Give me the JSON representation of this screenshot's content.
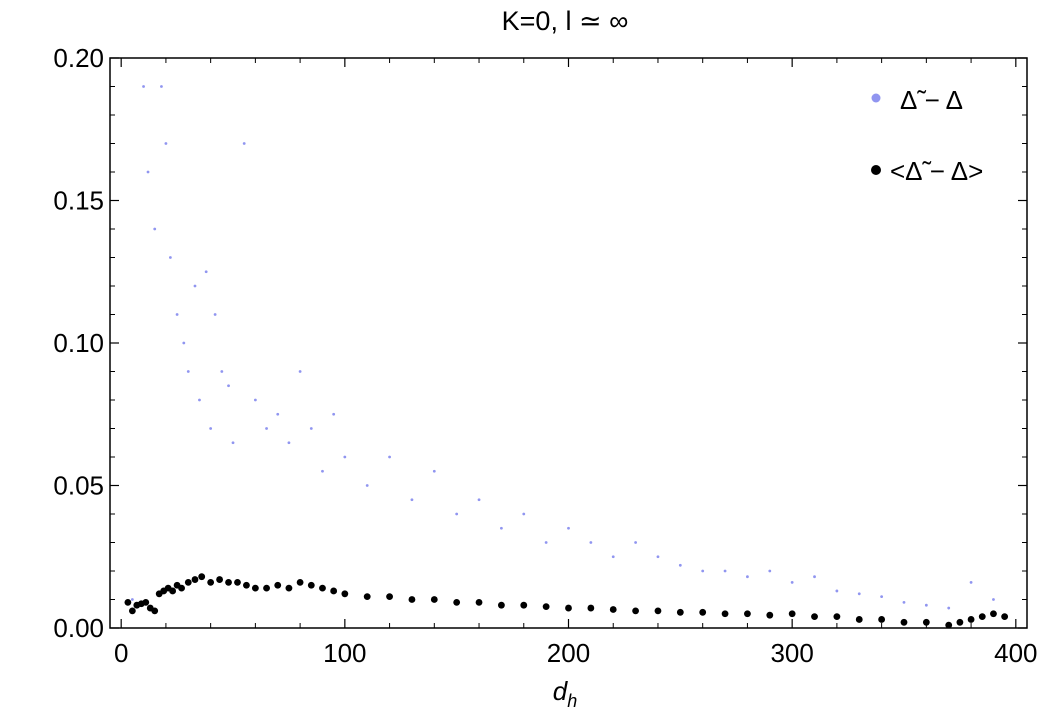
{
  "chart_data": {
    "type": "scatter",
    "title": "K=0,  l ≃ ∞",
    "xlabel": "d",
    "xlabel_sub": "h",
    "ylabel": "",
    "xlim": [
      -5,
      405
    ],
    "ylim": [
      0,
      0.2
    ],
    "x_ticks": [
      0,
      100,
      200,
      300,
      400
    ],
    "x_tick_labels": [
      "0",
      "100",
      "200",
      "300",
      "400"
    ],
    "y_ticks": [
      0,
      0.05,
      0.1,
      0.15,
      0.2
    ],
    "y_tick_labels": [
      "0.00",
      "0.05",
      "0.10",
      "0.15",
      "0.20"
    ],
    "grid": false,
    "legend_position": "top-right",
    "series": [
      {
        "name": "Δ̃ − Δ",
        "color": "#9095f0",
        "marker": "small-dot",
        "x": [
          5,
          10,
          12,
          15,
          18,
          20,
          22,
          25,
          28,
          30,
          33,
          35,
          38,
          40,
          42,
          45,
          48,
          50,
          55,
          60,
          65,
          70,
          75,
          80,
          85,
          90,
          95,
          100,
          110,
          120,
          130,
          140,
          150,
          160,
          170,
          180,
          190,
          200,
          210,
          220,
          230,
          240,
          250,
          260,
          270,
          280,
          290,
          300,
          310,
          320,
          330,
          340,
          350,
          360,
          370,
          380,
          390
        ],
        "y": [
          0.01,
          0.19,
          0.16,
          0.14,
          0.19,
          0.17,
          0.13,
          0.11,
          0.1,
          0.09,
          0.12,
          0.08,
          0.125,
          0.07,
          0.11,
          0.09,
          0.085,
          0.065,
          0.17,
          0.08,
          0.07,
          0.075,
          0.065,
          0.09,
          0.07,
          0.055,
          0.075,
          0.06,
          0.05,
          0.06,
          0.045,
          0.055,
          0.04,
          0.045,
          0.035,
          0.04,
          0.03,
          0.035,
          0.03,
          0.025,
          0.03,
          0.025,
          0.022,
          0.02,
          0.02,
          0.018,
          0.02,
          0.016,
          0.018,
          0.013,
          0.012,
          0.011,
          0.009,
          0.008,
          0.007,
          0.016,
          0.01
        ]
      },
      {
        "name": "<Δ̃ − Δ>",
        "color": "#000000",
        "marker": "dot",
        "x": [
          3,
          5,
          7,
          9,
          11,
          13,
          15,
          17,
          19,
          21,
          23,
          25,
          27,
          30,
          33,
          36,
          40,
          44,
          48,
          52,
          56,
          60,
          65,
          70,
          75,
          80,
          85,
          90,
          95,
          100,
          110,
          120,
          130,
          140,
          150,
          160,
          170,
          180,
          190,
          200,
          210,
          220,
          230,
          240,
          250,
          260,
          270,
          280,
          290,
          300,
          310,
          320,
          330,
          340,
          350,
          360,
          370,
          375,
          380,
          385,
          390,
          395
        ],
        "y": [
          0.009,
          0.006,
          0.008,
          0.0085,
          0.009,
          0.007,
          0.006,
          0.012,
          0.013,
          0.014,
          0.013,
          0.015,
          0.014,
          0.016,
          0.017,
          0.018,
          0.016,
          0.017,
          0.016,
          0.016,
          0.015,
          0.014,
          0.014,
          0.015,
          0.014,
          0.016,
          0.015,
          0.014,
          0.013,
          0.012,
          0.011,
          0.011,
          0.01,
          0.01,
          0.009,
          0.009,
          0.008,
          0.008,
          0.0075,
          0.007,
          0.007,
          0.0065,
          0.006,
          0.006,
          0.0055,
          0.0055,
          0.005,
          0.005,
          0.0045,
          0.005,
          0.004,
          0.004,
          0.003,
          0.003,
          0.002,
          0.002,
          0.001,
          0.002,
          0.003,
          0.004,
          0.005,
          0.004
        ]
      }
    ]
  }
}
